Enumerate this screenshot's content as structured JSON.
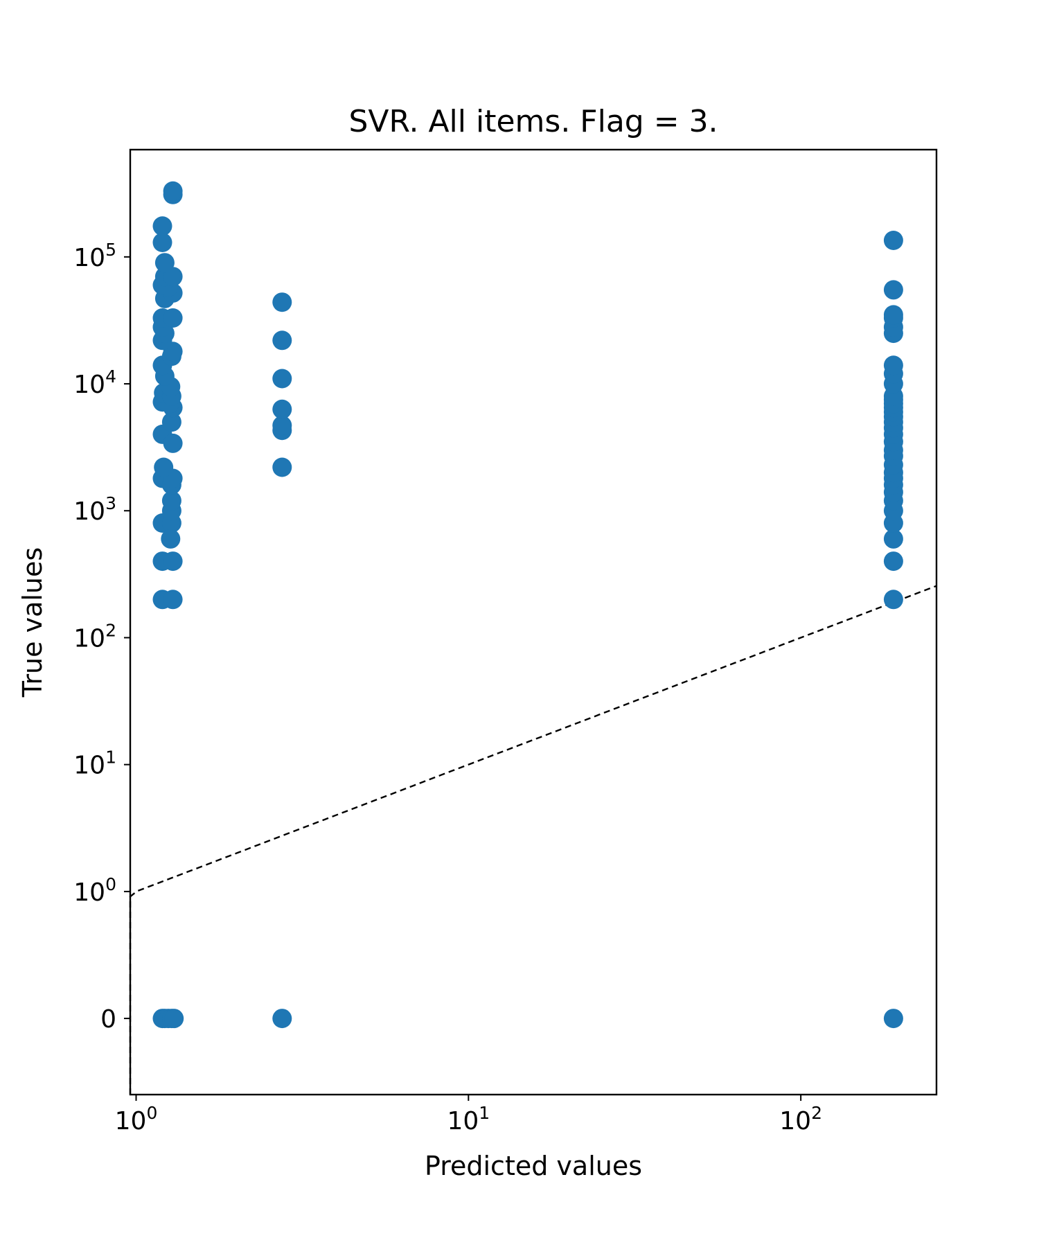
{
  "chart_data": {
    "type": "scatter",
    "title": "SVR. All items. Flag = 3.",
    "xlabel": "Predicted values",
    "ylabel": "True values",
    "xscale": "log",
    "yscale": "symlog",
    "xlim": [
      0.96,
      256
    ],
    "ylim": [
      -0.6,
      700000
    ],
    "grid": false,
    "legend": "none",
    "marker_color": "#1f77b4",
    "reference_line": {
      "style": "dashed",
      "color": "#000000",
      "description": "y = x"
    },
    "x_ticks": [
      {
        "base": "10",
        "exp": "0",
        "value": 1
      },
      {
        "base": "10",
        "exp": "1",
        "value": 10
      },
      {
        "base": "10",
        "exp": "2",
        "value": 100
      }
    ],
    "y_ticks": [
      {
        "base": "0",
        "exp": "",
        "value": 0
      },
      {
        "base": "10",
        "exp": "0",
        "value": 1
      },
      {
        "base": "10",
        "exp": "1",
        "value": 10
      },
      {
        "base": "10",
        "exp": "2",
        "value": 100
      },
      {
        "base": "10",
        "exp": "3",
        "value": 1000
      },
      {
        "base": "10",
        "exp": "4",
        "value": 10000
      },
      {
        "base": "10",
        "exp": "5",
        "value": 100000
      }
    ],
    "series": [
      {
        "points": [
          [
            1.2,
            0
          ],
          [
            1.22,
            0
          ],
          [
            1.25,
            0
          ],
          [
            1.28,
            0
          ],
          [
            1.3,
            0
          ],
          [
            1.2,
            200
          ],
          [
            1.29,
            200
          ],
          [
            1.2,
            400
          ],
          [
            1.29,
            400
          ],
          [
            1.2,
            800
          ],
          [
            1.28,
            800
          ],
          [
            1.28,
            1000
          ],
          [
            1.28,
            1200
          ],
          [
            1.2,
            1800
          ],
          [
            1.28,
            1600
          ],
          [
            1.29,
            1800
          ],
          [
            1.21,
            2200
          ],
          [
            1.27,
            600
          ],
          [
            1.2,
            4000
          ],
          [
            1.29,
            3400
          ],
          [
            1.28,
            5000
          ],
          [
            1.29,
            6500
          ],
          [
            1.26,
            7000
          ],
          [
            1.2,
            7200
          ],
          [
            1.21,
            8500
          ],
          [
            1.28,
            8000
          ],
          [
            1.27,
            9500
          ],
          [
            1.22,
            11500
          ],
          [
            1.2,
            14000
          ],
          [
            1.28,
            16500
          ],
          [
            1.29,
            18000
          ],
          [
            1.2,
            22000
          ],
          [
            1.22,
            25000
          ],
          [
            1.2,
            28000
          ],
          [
            1.2,
            33000
          ],
          [
            1.29,
            33000
          ],
          [
            1.22,
            47000
          ],
          [
            1.29,
            52000
          ],
          [
            1.25,
            58000
          ],
          [
            1.2,
            60000
          ],
          [
            1.22,
            70000
          ],
          [
            1.29,
            70000
          ],
          [
            1.22,
            90000
          ],
          [
            1.2,
            130000
          ],
          [
            1.2,
            175000
          ],
          [
            1.29,
            310000
          ],
          [
            1.29,
            330000
          ],
          [
            2.75,
            0
          ],
          [
            2.75,
            2200
          ],
          [
            2.75,
            4300
          ],
          [
            2.75,
            4700
          ],
          [
            2.75,
            6300
          ],
          [
            2.75,
            11000
          ],
          [
            2.75,
            22000
          ],
          [
            2.75,
            44000
          ],
          [
            190,
            0
          ],
          [
            190,
            200
          ],
          [
            190,
            400
          ],
          [
            190,
            600
          ],
          [
            190,
            800
          ],
          [
            190,
            1000
          ],
          [
            190,
            1200
          ],
          [
            190,
            1400
          ],
          [
            190,
            1600
          ],
          [
            190,
            1800
          ],
          [
            190,
            2000
          ],
          [
            190,
            2300
          ],
          [
            190,
            2700
          ],
          [
            190,
            3000
          ],
          [
            190,
            3500
          ],
          [
            190,
            4000
          ],
          [
            190,
            4500
          ],
          [
            190,
            5000
          ],
          [
            190,
            5500
          ],
          [
            190,
            6000
          ],
          [
            190,
            6500
          ],
          [
            190,
            7000
          ],
          [
            190,
            7500
          ],
          [
            190,
            8000
          ],
          [
            190,
            10000
          ],
          [
            190,
            12000
          ],
          [
            190,
            14000
          ],
          [
            190,
            25000
          ],
          [
            190,
            28000
          ],
          [
            190,
            33000
          ],
          [
            190,
            35000
          ],
          [
            190,
            55000
          ],
          [
            190,
            135000
          ]
        ]
      }
    ]
  }
}
